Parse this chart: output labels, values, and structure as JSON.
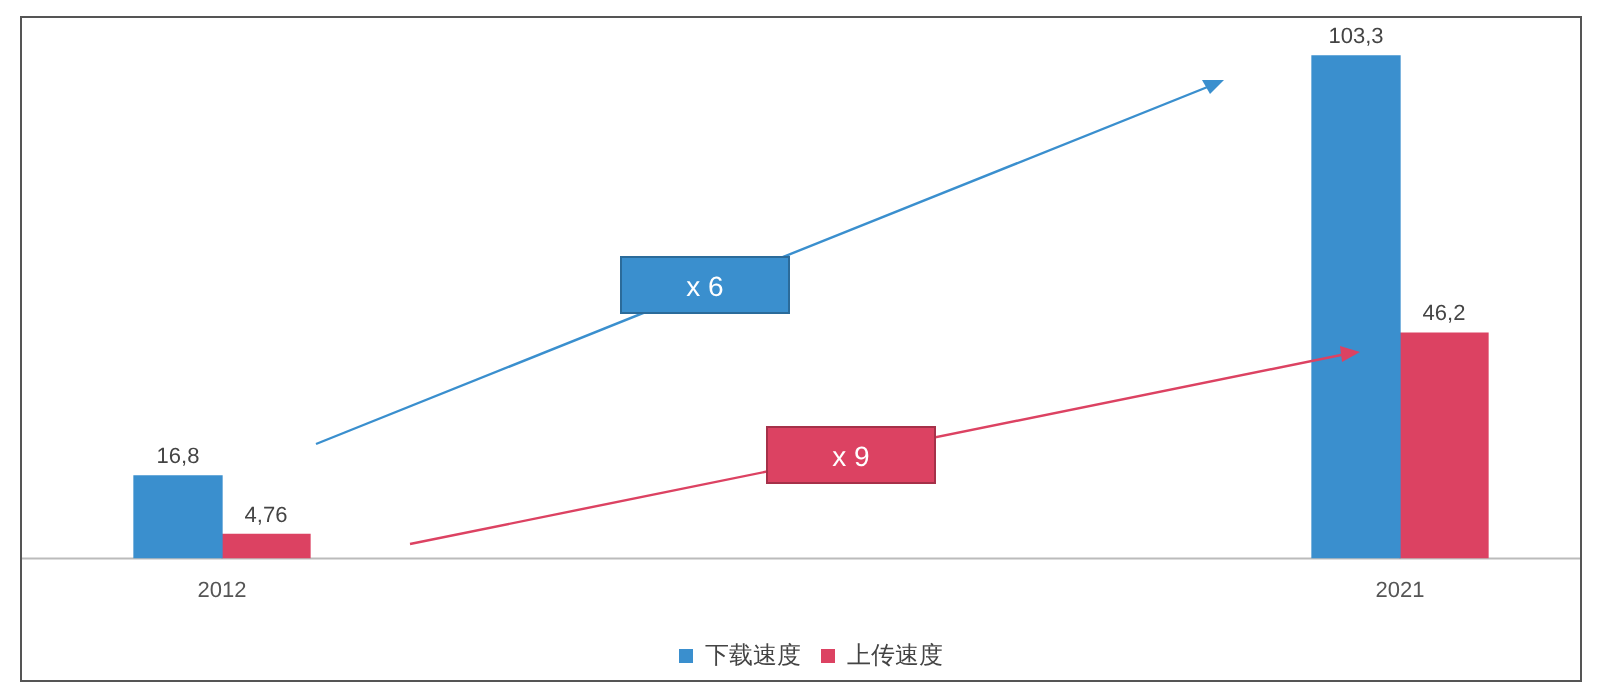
{
  "chart_data": {
    "type": "bar",
    "categories": [
      "2012",
      "2021"
    ],
    "series": [
      {
        "name": "下载速度",
        "color": "#3a8fce",
        "values": [
          16.8,
          103.3
        ],
        "value_labels": [
          "16,8",
          "103,3"
        ]
      },
      {
        "name": "上传速度",
        "color": "#dc4262",
        "values": [
          4.76,
          46.2
        ],
        "value_labels": [
          "4,76",
          "46,2"
        ]
      }
    ],
    "annotations": [
      "x 6",
      "x 9"
    ],
    "legend": "bottom",
    "grid": false
  }
}
